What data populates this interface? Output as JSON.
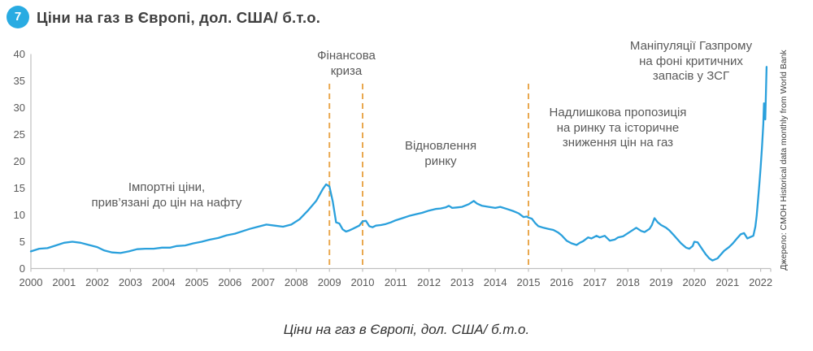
{
  "header": {
    "badge": "7",
    "title": "Ціни на газ в Європі, дол. США/ б.т.о."
  },
  "caption": "Ціни на газ в Європі, дол. США/ б.т.о.",
  "source_note": "Джерело: CMOH Historical data monthly from World Bank",
  "colors": {
    "accent_blue": "#29ABE2",
    "line_blue": "#2AA0DC",
    "dashed_orange": "#E9A84F",
    "axis_gray": "#BFBFBF",
    "text_gray": "#595959",
    "title_gray": "#404040"
  },
  "chart_data": {
    "type": "line",
    "title": "Ціни на газ в Європі, дол. США/ б.т.о.",
    "xlabel": "",
    "ylabel": "дол. США/ б.т.о.",
    "xlim": [
      2000,
      2022.35
    ],
    "ylim": [
      0,
      40
    ],
    "grid": false,
    "legend": false,
    "yticks": [
      0,
      5,
      10,
      15,
      20,
      25,
      30,
      35,
      40
    ],
    "xticks": [
      2000,
      2001,
      2002,
      2003,
      2004,
      2005,
      2006,
      2007,
      2008,
      2009,
      2010,
      2011,
      2012,
      2013,
      2014,
      2015,
      2016,
      2017,
      2018,
      2019,
      2020,
      2021,
      2022
    ],
    "vlines": {
      "x": [
        2009,
        2010,
        2015
      ],
      "color": "#E9A84F",
      "style": "dashed"
    },
    "series": [
      {
        "name": "Ціни на газ в Європі",
        "color": "#2AA0DC",
        "x": [
          2000.0,
          2000.25,
          2000.5,
          2000.75,
          2001.0,
          2001.25,
          2001.5,
          2001.75,
          2002.0,
          2002.2,
          2002.45,
          2002.7,
          2002.95,
          2003.2,
          2003.45,
          2003.7,
          2003.95,
          2004.2,
          2004.4,
          2004.65,
          2004.9,
          2005.15,
          2005.4,
          2005.65,
          2005.9,
          2006.15,
          2006.4,
          2006.6,
          2006.85,
          2007.1,
          2007.35,
          2007.6,
          2007.85,
          2008.1,
          2008.35,
          2008.6,
          2008.8,
          2008.9,
          2009.0,
          2009.1,
          2009.2,
          2009.3,
          2009.4,
          2009.5,
          2009.6,
          2009.7,
          2009.8,
          2009.9,
          2010.0,
          2010.1,
          2010.2,
          2010.3,
          2010.4,
          2010.55,
          2010.7,
          2010.85,
          2011.0,
          2011.2,
          2011.4,
          2011.6,
          2011.8,
          2012.0,
          2012.2,
          2012.35,
          2012.5,
          2012.6,
          2012.7,
          2012.85,
          2013.0,
          2013.2,
          2013.35,
          2013.45,
          2013.6,
          2013.8,
          2014.0,
          2014.15,
          2014.35,
          2014.55,
          2014.7,
          2014.85,
          2014.95,
          2015.0,
          2015.1,
          2015.2,
          2015.3,
          2015.45,
          2015.6,
          2015.75,
          2015.9,
          2016.0,
          2016.15,
          2016.3,
          2016.45,
          2016.55,
          2016.65,
          2016.8,
          2016.9,
          2017.05,
          2017.15,
          2017.3,
          2017.45,
          2017.6,
          2017.7,
          2017.85,
          2018.0,
          2018.1,
          2018.25,
          2018.4,
          2018.5,
          2018.65,
          2018.72,
          2018.8,
          2018.9,
          2019.0,
          2019.15,
          2019.25,
          2019.4,
          2019.5,
          2019.6,
          2019.75,
          2019.85,
          2019.95,
          2020.0,
          2020.1,
          2020.25,
          2020.35,
          2020.45,
          2020.55,
          2020.7,
          2020.8,
          2020.9,
          2021.05,
          2021.15,
          2021.3,
          2021.4,
          2021.5,
          2021.6,
          2021.7,
          2021.78,
          2021.84,
          2021.88,
          2021.92,
          2021.96,
          2022.0,
          2022.04,
          2022.08,
          2022.1,
          2022.14,
          2022.18
        ],
        "values": [
          3.2,
          3.7,
          3.8,
          4.3,
          4.8,
          5.0,
          4.8,
          4.4,
          4.0,
          3.4,
          3.0,
          2.9,
          3.2,
          3.6,
          3.7,
          3.7,
          3.9,
          3.9,
          4.2,
          4.3,
          4.7,
          5.0,
          5.4,
          5.7,
          6.2,
          6.5,
          7.0,
          7.4,
          7.8,
          8.2,
          8.0,
          7.8,
          8.2,
          9.2,
          10.8,
          12.6,
          14.8,
          15.7,
          15.3,
          12.5,
          8.6,
          8.4,
          7.3,
          6.9,
          7.1,
          7.4,
          7.7,
          8.0,
          8.8,
          8.9,
          7.9,
          7.7,
          8.0,
          8.1,
          8.3,
          8.6,
          9.0,
          9.4,
          9.8,
          10.1,
          10.4,
          10.8,
          11.1,
          11.2,
          11.4,
          11.7,
          11.3,
          11.4,
          11.5,
          12.0,
          12.6,
          12.1,
          11.7,
          11.5,
          11.3,
          11.5,
          11.1,
          10.7,
          10.3,
          9.6,
          9.7,
          9.5,
          9.3,
          8.5,
          7.9,
          7.6,
          7.4,
          7.2,
          6.7,
          6.2,
          5.2,
          4.7,
          4.4,
          4.8,
          5.1,
          5.8,
          5.6,
          6.1,
          5.8,
          6.1,
          5.2,
          5.4,
          5.8,
          6.0,
          6.6,
          7.0,
          7.6,
          7.0,
          6.8,
          7.4,
          8.1,
          9.4,
          8.6,
          8.1,
          7.6,
          7.1,
          6.1,
          5.4,
          4.7,
          3.9,
          3.7,
          4.2,
          5.0,
          4.9,
          3.5,
          2.6,
          1.9,
          1.5,
          1.9,
          2.6,
          3.3,
          4.0,
          4.6,
          5.7,
          6.4,
          6.6,
          5.6,
          5.9,
          6.1,
          7.8,
          9.8,
          12.6,
          15.7,
          18.9,
          22.5,
          27.0,
          30.8,
          27.8,
          37.6
        ]
      }
    ],
    "annotations": [
      {
        "name": "import-prices",
        "text": "Імпортні ціни,\nприв’язані до цін на нафту"
      },
      {
        "name": "financial-crisis",
        "text": "Фінансова\nкриза"
      },
      {
        "name": "market-recovery",
        "text": "Відновлення\nринку"
      },
      {
        "name": "oversupply",
        "text": "Надлишкова пропозиція\nна ринку та історичне\nзниження цін на газ"
      },
      {
        "name": "gazprom-manipulation",
        "text": "Маніпуляції Газпрому\nна фоні критичних\nзапасів у ЗСГ"
      }
    ]
  }
}
